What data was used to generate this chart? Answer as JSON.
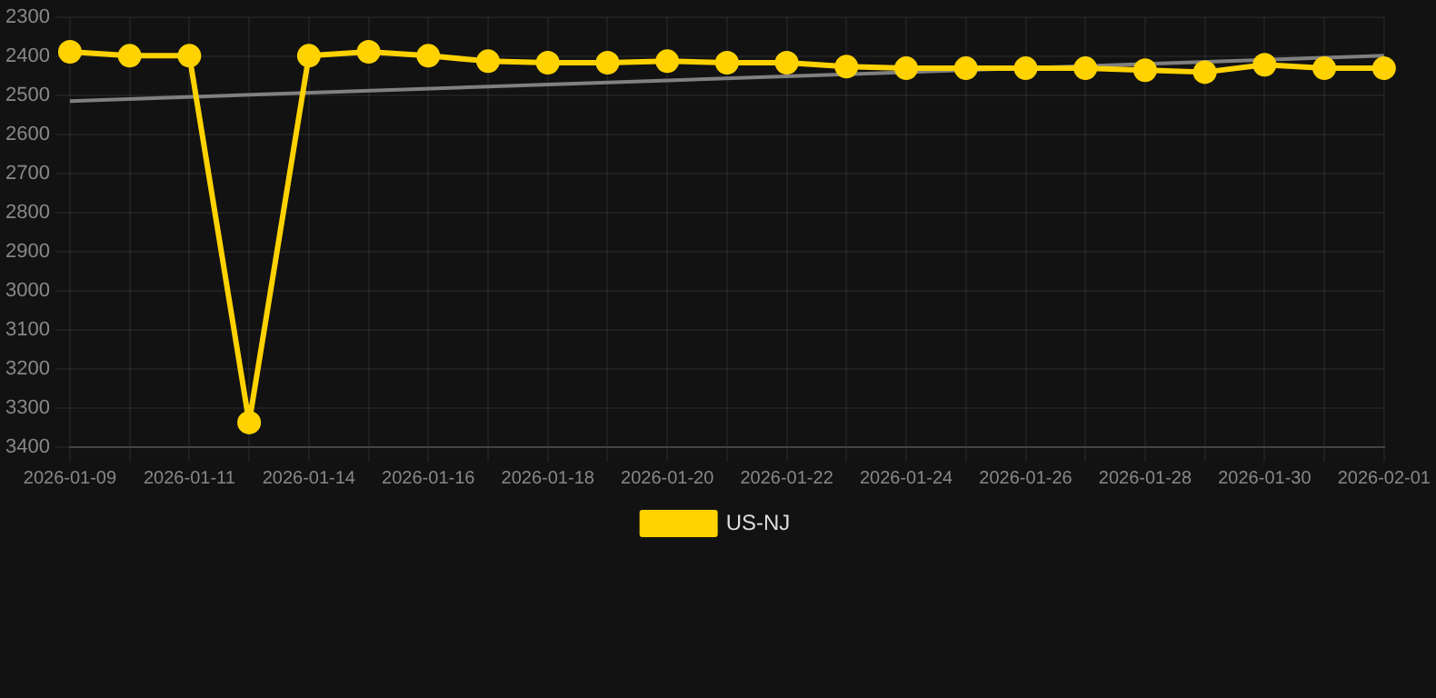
{
  "chart_data": {
    "type": "line",
    "categories": [
      "2026-01-09",
      null,
      "2026-01-11",
      null,
      "2026-01-14",
      null,
      "2026-01-16",
      null,
      "2026-01-18",
      null,
      "2026-01-20",
      null,
      "2026-01-22",
      null,
      "2026-01-24",
      null,
      "2026-01-26",
      null,
      "2026-01-28",
      null,
      "2026-01-30",
      null,
      "2026-02-01"
    ],
    "series": [
      {
        "name": "US-NJ",
        "color": "#ffd200",
        "marker": "circle",
        "values": [
          2388,
          2398,
          2398,
          3337,
          2398,
          2388,
          2398,
          2412,
          2416,
          2416,
          2412,
          2416,
          2416,
          2426,
          2430,
          2430,
          2430,
          2430,
          2435,
          2440,
          2421,
          2430,
          2430
        ]
      },
      {
        "color": "#808080",
        "marker": "none",
        "values": [
          2514,
          null,
          null,
          null,
          null,
          null,
          null,
          null,
          null,
          null,
          null,
          null,
          null,
          null,
          null,
          null,
          null,
          null,
          null,
          null,
          null,
          null,
          2398
        ]
      }
    ],
    "ylim": [
      3400,
      2300
    ],
    "yticks": [
      2300,
      2400,
      2500,
      2600,
      2700,
      2800,
      2900,
      3000,
      3100,
      3200,
      3300,
      3400
    ],
    "grid": true,
    "legend": "bottom"
  }
}
